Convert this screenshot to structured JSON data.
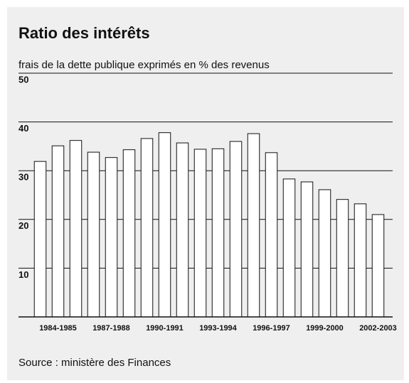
{
  "chart_data": {
    "type": "bar",
    "title": "Ratio des intérêts",
    "subtitle": "frais de la dette publique exprimés en % des revenus",
    "source": "Source : ministère des Finances",
    "categories": [
      null,
      "1984-1985",
      null,
      null,
      "1987-1988",
      null,
      null,
      "1990-1991",
      null,
      null,
      "1993-1994",
      null,
      null,
      "1996-1997",
      null,
      null,
      "1999-2000",
      null,
      null,
      "2002-2003"
    ],
    "values": [
      31.9,
      35.1,
      36.2,
      33.8,
      32.7,
      34.3,
      36.6,
      37.8,
      35.7,
      34.4,
      34.5,
      36.0,
      37.6,
      33.7,
      28.3,
      27.7,
      26.1,
      24.1,
      23.2,
      21.0
    ],
    "color": "#ffffff",
    "ylim": [
      0,
      50
    ],
    "yticks": [
      10,
      20,
      30,
      40,
      50
    ],
    "grid": true
  }
}
